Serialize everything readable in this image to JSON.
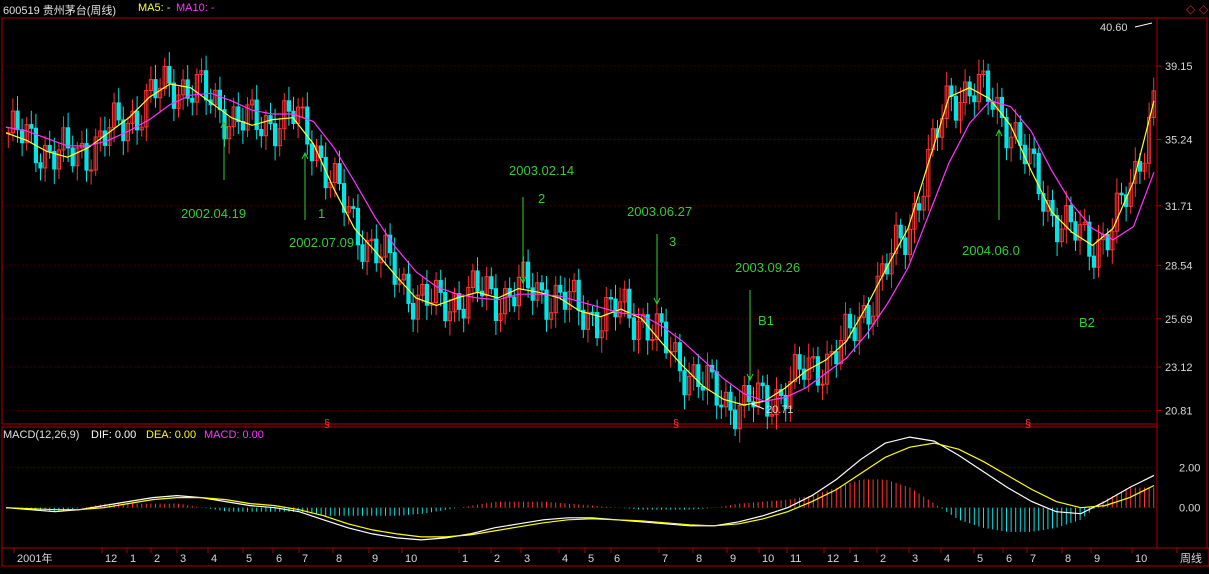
{
  "header": {
    "stock_label": "600519 贵州茅台(周线)",
    "ma5_label": "MA5: -",
    "ma10_label": "MA10: -",
    "corner_icon": "diamond-icon"
  },
  "macd_header": {
    "label": "MACD(12,26,9)",
    "dif_label": "DIF: 0.00",
    "dea_label": "DEA: 0.00",
    "macd_label": "MACD: 0.00"
  },
  "colors": {
    "up": "#ff3333",
    "down": "#00e6e6",
    "ma5": "#ffff33",
    "ma10": "#ff33ff",
    "dif": "#ffffff",
    "dea": "#ffff00",
    "annotation": "#33cc33",
    "frame": "#b00000"
  },
  "chart_data": [
    {
      "type": "candlestick",
      "title": "600519 贵州茅台(周线)",
      "y_ticks": [
        "39.15",
        "35.24",
        "31.71",
        "28.54",
        "25.69",
        "23.12",
        "20.81"
      ],
      "ylim": [
        20.3,
        41.5
      ],
      "x_tick_labels": [
        "2001年",
        "12",
        "1",
        "2",
        "3",
        "4",
        "5",
        "6",
        "7",
        "8",
        "9",
        "10",
        "1",
        "2",
        "3",
        "4",
        "5",
        "6",
        "7",
        "8",
        "9",
        "10",
        "11",
        "12",
        "1",
        "2",
        "3",
        "4",
        "5",
        "6",
        "7",
        "8",
        "9",
        "10",
        "周线"
      ],
      "series": [
        {
          "name": "MA5",
          "values": [
            35.6,
            35.2,
            34.6,
            34.3,
            34.8,
            35.6,
            36.4,
            37.5,
            38.2,
            38.0,
            37.2,
            36.4,
            36.0,
            36.3,
            36.4,
            35.0,
            32.6,
            30.5,
            29.3,
            28.0,
            26.8,
            26.4,
            26.8,
            27.1,
            26.8,
            27.3,
            27.1,
            26.8,
            26.1,
            25.8,
            26.2,
            25.7,
            24.4,
            23.2,
            22.1,
            21.4,
            21.1,
            21.3,
            22.0,
            22.9,
            23.5,
            24.5,
            26.4,
            28.5,
            30.5,
            34.0,
            37.5,
            38.0,
            37.4,
            36.0,
            33.6,
            31.4,
            30.3,
            29.6,
            30.5,
            33.0,
            37.3
          ]
        },
        {
          "name": "MA10",
          "values": [
            35.9,
            35.7,
            35.3,
            34.9,
            34.9,
            35.2,
            35.7,
            36.3,
            37.1,
            37.6,
            37.7,
            37.3,
            36.8,
            36.6,
            36.6,
            36.2,
            34.8,
            33.0,
            31.1,
            29.5,
            28.2,
            27.4,
            27.0,
            26.8,
            26.7,
            27.0,
            27.0,
            26.9,
            26.6,
            26.3,
            26.0,
            25.9,
            25.3,
            24.5,
            23.5,
            22.5,
            21.7,
            21.3,
            21.5,
            22.0,
            22.8,
            23.6,
            24.9,
            26.5,
            28.4,
            31.2,
            34.0,
            36.1,
            37.3,
            37.0,
            35.7,
            33.6,
            31.8,
            30.5,
            29.9,
            30.6,
            33.5
          ]
        },
        {
          "name": "DIF",
          "values": [
            0.0,
            -0.1,
            -0.2,
            -0.1,
            0.1,
            0.3,
            0.5,
            0.6,
            0.5,
            0.3,
            0.1,
            0.0,
            -0.2,
            -0.6,
            -1.0,
            -1.3,
            -1.5,
            -1.6,
            -1.5,
            -1.3,
            -1.0,
            -0.8,
            -0.6,
            -0.5,
            -0.5,
            -0.6,
            -0.7,
            -0.8,
            -0.9,
            -0.9,
            -0.7,
            -0.4,
            0.0,
            0.6,
            1.4,
            2.4,
            3.2,
            3.5,
            3.3,
            2.6,
            1.8,
            1.0,
            0.3,
            -0.2,
            -0.3,
            0.3,
            1.0,
            1.6
          ]
        },
        {
          "name": "DEA",
          "values": [
            0.0,
            -0.05,
            -0.1,
            -0.1,
            0.0,
            0.2,
            0.4,
            0.5,
            0.5,
            0.4,
            0.2,
            0.1,
            -0.1,
            -0.4,
            -0.8,
            -1.1,
            -1.3,
            -1.45,
            -1.45,
            -1.35,
            -1.15,
            -0.95,
            -0.75,
            -0.6,
            -0.55,
            -0.6,
            -0.65,
            -0.75,
            -0.85,
            -0.9,
            -0.8,
            -0.55,
            -0.2,
            0.3,
            0.9,
            1.7,
            2.5,
            3.0,
            3.2,
            2.9,
            2.3,
            1.6,
            0.9,
            0.3,
            0.0,
            0.1,
            0.5,
            1.1
          ]
        }
      ],
      "annotations": [
        {
          "label": "2002.04.19",
          "number": ""
        },
        {
          "label": "2002.07.09",
          "number": "1"
        },
        {
          "label": "2003.02.14",
          "number": "2"
        },
        {
          "label": "2003.06.27",
          "number": "3"
        },
        {
          "label": "2003.09.26",
          "number": "B1"
        },
        {
          "label": "2004.06.0",
          "number": "B2"
        }
      ],
      "max_label": "40.60",
      "min_label": "20.71",
      "section_marks": [
        "§",
        "§",
        "§"
      ]
    },
    {
      "type": "bar",
      "title": "MACD(12,26,9)",
      "y_ticks": [
        "2.00",
        "0.00"
      ],
      "ylim": [
        -2.0,
        4.0
      ]
    }
  ]
}
